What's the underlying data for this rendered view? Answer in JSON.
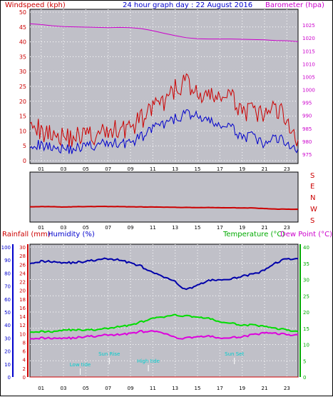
{
  "headers": {
    "windspeed": "Windspeed (kph)",
    "title": "24 hour graph day : 22 August 2016",
    "barometer": "Barometer (hpa)",
    "rainfall": "Rainfall (mm)",
    "humidity": "Humidity (%)",
    "temperature": "Temperature (°C)",
    "dewpoint": "Dew Point (°C)"
  },
  "colors": {
    "wind_max": "#cc0000",
    "wind_avg": "#0000cc",
    "barometer": "#cc00cc",
    "direction": "#cc0000",
    "humidity": "#0000aa",
    "temperature": "#00dd00",
    "dewpoint": "#dd00dd",
    "markers": "#00cccc",
    "plot_bg": "#c0c0c8"
  },
  "time_ticks": [
    "01",
    "03",
    "05",
    "07",
    "09",
    "11",
    "13",
    "15",
    "17",
    "19",
    "21",
    "23"
  ],
  "direction_labels": [
    "S",
    "E",
    "N",
    "W",
    "S"
  ],
  "sun_markers": [
    {
      "label": "Low tide",
      "hour": 4.5
    },
    {
      "label": "Sun Rise",
      "hour": 7.1
    },
    {
      "label": "High tide",
      "hour": 10.6
    },
    {
      "label": "Sun Set",
      "hour": 18.3
    }
  ],
  "chart_data": [
    {
      "type": "line",
      "name": "wind-barometer",
      "x_ticks": [
        "01",
        "03",
        "05",
        "07",
        "09",
        "11",
        "13",
        "15",
        "17",
        "19",
        "21",
        "23"
      ],
      "y_left": {
        "label": "Windspeed (kph)",
        "range": [
          0,
          50
        ],
        "ticks": [
          0,
          5,
          10,
          15,
          20,
          25,
          30,
          35,
          40,
          45,
          50
        ]
      },
      "y_right": {
        "label": "Barometer (hpa)",
        "range": [
          972.5,
          1030
        ],
        "ticks": [
          975,
          980,
          985,
          990,
          995,
          1000,
          1005,
          1010,
          1015,
          1020,
          1025
        ]
      },
      "series": [
        {
          "axis": "left",
          "hours": [
            0,
            1,
            2,
            3,
            4,
            5,
            6,
            7,
            8,
            9,
            10,
            11,
            12,
            13,
            14,
            15,
            16,
            17,
            18,
            19,
            20,
            21,
            22,
            23,
            24
          ],
          "values": [
            16,
            9,
            10,
            8,
            8,
            9,
            8,
            10,
            11,
            11,
            14,
            18,
            19,
            24,
            27,
            22,
            21,
            22,
            21,
            17,
            16,
            15,
            18,
            14,
            7
          ]
        },
        {
          "axis": "left",
          "hours": [
            0,
            1,
            2,
            3,
            4,
            5,
            6,
            7,
            8,
            9,
            10,
            11,
            12,
            13,
            14,
            15,
            16,
            17,
            18,
            19,
            20,
            21,
            22,
            23,
            24
          ],
          "values": [
            6,
            5,
            5,
            4,
            4,
            5,
            5,
            6,
            6,
            6,
            8,
            11,
            12,
            14,
            16,
            15,
            13,
            12,
            11,
            8,
            8,
            5,
            8,
            6,
            4
          ]
        },
        {
          "axis": "right",
          "hours": [
            0,
            1,
            2,
            3,
            4,
            5,
            6,
            7,
            8,
            9,
            10,
            11,
            12,
            13,
            14,
            15,
            16,
            17,
            18,
            19,
            20,
            21,
            22,
            23,
            24
          ],
          "values": [
            1025.5,
            1025.2,
            1024.7,
            1024.4,
            1024.3,
            1024.2,
            1024.1,
            1024.0,
            1024.1,
            1024.0,
            1023.6,
            1022.8,
            1021.8,
            1020.9,
            1020.1,
            1019.7,
            1019.6,
            1019.6,
            1019.6,
            1019.5,
            1019.4,
            1019.3,
            1019.0,
            1018.9,
            1018.6
          ]
        }
      ]
    },
    {
      "type": "line",
      "name": "wind-direction",
      "x_ticks": [
        "01",
        "03",
        "05",
        "07",
        "09",
        "11",
        "13",
        "15",
        "17",
        "19",
        "21",
        "23"
      ],
      "y_labels": [
        "S",
        "E",
        "N",
        "W",
        "S"
      ],
      "series": [
        {
          "hours": [
            0,
            1,
            2,
            3,
            4,
            5,
            6,
            7,
            8,
            9,
            10,
            11,
            12,
            13,
            14,
            15,
            16,
            17,
            18,
            19,
            20,
            21,
            22,
            23,
            24
          ],
          "values": [
            90,
            91,
            91,
            87,
            90,
            91,
            92,
            92,
            91,
            89,
            88,
            87,
            86,
            84,
            83,
            82,
            82,
            81,
            80,
            79,
            78,
            72,
            68,
            67,
            66
          ]
        }
      ]
    },
    {
      "type": "line",
      "name": "temperature-humidity",
      "x_ticks": [
        "01",
        "03",
        "05",
        "07",
        "09",
        "11",
        "13",
        "15",
        "17",
        "19",
        "21",
        "23"
      ],
      "y_left_outer": {
        "label": "Humidity (%)",
        "range": [
          0,
          100
        ],
        "ticks": [
          0,
          10,
          20,
          30,
          40,
          50,
          60,
          70,
          80,
          90,
          100
        ]
      },
      "y_left_inner": {
        "label": "Rainfall (mm)",
        "range": [
          0,
          30
        ],
        "ticks": [
          0,
          2,
          4,
          6,
          8,
          10,
          12,
          14,
          16,
          18,
          20,
          22,
          24,
          26,
          28,
          30
        ]
      },
      "y_right": {
        "label": "Temperature (°C) Dew Point (°C)",
        "range": [
          0,
          40
        ],
        "ticks": [
          0,
          5,
          10,
          15,
          20,
          25,
          30,
          35,
          40
        ]
      },
      "series": [
        {
          "name": "Humidity (%)",
          "hours": [
            0,
            1,
            2,
            3,
            4,
            5,
            6,
            7,
            8,
            9,
            10,
            11,
            12,
            13,
            14,
            15,
            16,
            17,
            18,
            19,
            20,
            21,
            22,
            23,
            24
          ],
          "values": [
            88,
            89,
            89,
            88,
            88,
            89,
            90,
            91,
            90,
            88,
            85,
            80,
            77,
            73,
            67,
            71,
            74,
            75,
            75,
            78,
            79,
            82,
            88,
            91,
            91
          ]
        },
        {
          "name": "Temperature (°C)",
          "hours": [
            0,
            1,
            2,
            3,
            4,
            5,
            6,
            7,
            8,
            9,
            10,
            11,
            12,
            13,
            14,
            15,
            16,
            17,
            18,
            19,
            20,
            21,
            22,
            23,
            24
          ],
          "values": [
            14,
            14,
            14,
            14.5,
            14.5,
            14.5,
            14.5,
            15,
            15.5,
            16,
            17,
            18,
            18.5,
            19,
            18.8,
            18.5,
            18,
            17,
            16.5,
            16,
            16,
            15.5,
            15,
            14.5,
            14
          ]
        },
        {
          "name": "Dew Point (°C)",
          "hours": [
            0,
            1,
            2,
            3,
            4,
            5,
            6,
            7,
            8,
            9,
            10,
            11,
            12,
            13,
            14,
            15,
            16,
            17,
            18,
            19,
            20,
            21,
            22,
            23,
            24
          ],
          "values": [
            12,
            12,
            12,
            12,
            12,
            12.5,
            12.5,
            13,
            13,
            13.5,
            14,
            14,
            13.5,
            12,
            12,
            12.5,
            12.5,
            12,
            12,
            12.5,
            13,
            13.5,
            13.5,
            13,
            13
          ]
        },
        {
          "name": "Rainfall (mm)",
          "hours": [
            0,
            24
          ],
          "values": [
            0,
            0
          ]
        }
      ]
    }
  ]
}
